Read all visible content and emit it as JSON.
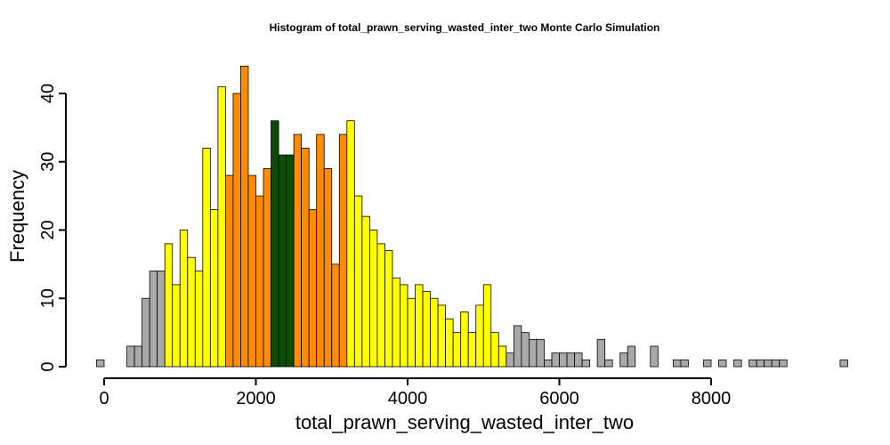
{
  "chart_data": {
    "type": "bar",
    "title": "Histogram of  total_prawn_serving_wasted_inter_two  Monte Carlo Simulation",
    "xlabel": "total_prawn_serving_wasted_inter_two",
    "ylabel": "Frequency",
    "bin_width": 100,
    "x_start": -100,
    "xlim": [
      -150,
      9600
    ],
    "ylim": [
      0,
      44
    ],
    "x_ticks": [
      0,
      2000,
      4000,
      6000,
      8000
    ],
    "y_ticks": [
      0,
      10,
      20,
      30,
      40
    ],
    "grid": false,
    "colors": {
      "gray": "#a9a9a9",
      "yellow": "#ffff00",
      "orange": "#ff8c00",
      "green": "#0b4d05"
    },
    "values": [
      1,
      0,
      0,
      0,
      3,
      3,
      10,
      14,
      14,
      18,
      12,
      20,
      16,
      14,
      32,
      23,
      41,
      28,
      40,
      44,
      28,
      25,
      29,
      36,
      31,
      31,
      34,
      32,
      23,
      34,
      29,
      15,
      34,
      36,
      25,
      22,
      20,
      18,
      17,
      13,
      12,
      10,
      12,
      11,
      10,
      9,
      7,
      5,
      8,
      5,
      9,
      12,
      5,
      3,
      2,
      6,
      5,
      4,
      4,
      1,
      2,
      2,
      2,
      2,
      1,
      0,
      4,
      1,
      0,
      2,
      3,
      0,
      0,
      3,
      0,
      0,
      1,
      1,
      0,
      0,
      1,
      0,
      1,
      0,
      1,
      0,
      1,
      1,
      1,
      1,
      1,
      0,
      0,
      0,
      0,
      0,
      0,
      0,
      1
    ],
    "bar_colors": [
      "gray",
      "gray",
      "gray",
      "gray",
      "gray",
      "gray",
      "gray",
      "gray",
      "gray",
      "yellow",
      "yellow",
      "yellow",
      "yellow",
      "yellow",
      "yellow",
      "yellow",
      "yellow",
      "orange",
      "orange",
      "orange",
      "orange",
      "orange",
      "orange",
      "green",
      "green",
      "green",
      "orange",
      "orange",
      "orange",
      "orange",
      "orange",
      "orange",
      "orange",
      "yellow",
      "yellow",
      "yellow",
      "yellow",
      "yellow",
      "yellow",
      "yellow",
      "yellow",
      "yellow",
      "yellow",
      "yellow",
      "yellow",
      "yellow",
      "yellow",
      "yellow",
      "yellow",
      "yellow",
      "yellow",
      "yellow",
      "yellow",
      "yellow",
      "gray",
      "gray",
      "gray",
      "gray",
      "gray",
      "gray",
      "gray",
      "gray",
      "gray",
      "gray",
      "gray",
      "gray",
      "gray",
      "gray",
      "gray",
      "gray",
      "gray",
      "gray",
      "gray",
      "gray",
      "gray",
      "gray",
      "gray",
      "gray",
      "gray",
      "gray",
      "gray",
      "gray",
      "gray",
      "gray",
      "gray",
      "gray",
      "gray",
      "gray",
      "gray",
      "gray",
      "gray",
      "gray",
      "gray",
      "gray",
      "gray",
      "gray",
      "gray",
      "gray",
      "gray"
    ]
  }
}
